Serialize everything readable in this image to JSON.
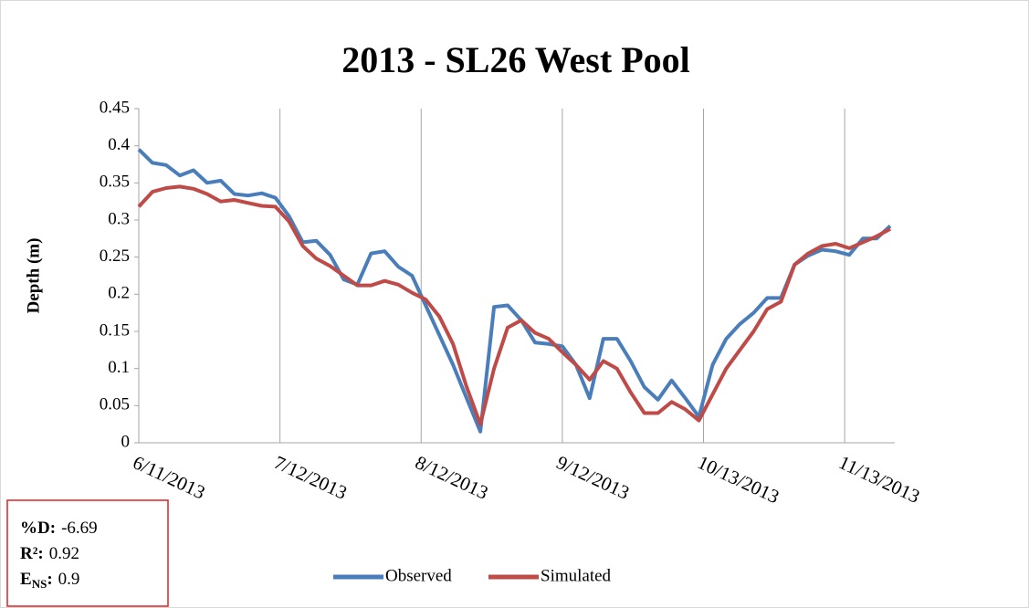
{
  "chart_data": {
    "type": "line",
    "title": "2013 - SL26 West Pool",
    "y_label": "Depth (m)",
    "x": [
      "2013-06-11",
      "2013-06-14",
      "2013-06-17",
      "2013-06-20",
      "2013-06-23",
      "2013-06-26",
      "2013-06-29",
      "2013-07-02",
      "2013-07-05",
      "2013-07-08",
      "2013-07-11",
      "2013-07-14",
      "2013-07-17",
      "2013-07-20",
      "2013-07-23",
      "2013-07-26",
      "2013-07-29",
      "2013-08-01",
      "2013-08-04",
      "2013-08-07",
      "2013-08-10",
      "2013-08-13",
      "2013-08-16",
      "2013-08-19",
      "2013-08-22",
      "2013-08-25",
      "2013-08-28",
      "2013-08-31",
      "2013-09-03",
      "2013-09-06",
      "2013-09-09",
      "2013-09-12",
      "2013-09-15",
      "2013-09-18",
      "2013-09-21",
      "2013-09-24",
      "2013-09-27",
      "2013-09-30",
      "2013-10-03",
      "2013-10-06",
      "2013-10-09",
      "2013-10-12",
      "2013-10-15",
      "2013-10-18",
      "2013-10-21",
      "2013-10-24",
      "2013-10-27",
      "2013-10-30",
      "2013-11-02",
      "2013-11-05",
      "2013-11-08",
      "2013-11-11",
      "2013-11-14",
      "2013-11-17",
      "2013-11-20",
      "2013-11-23"
    ],
    "series": [
      {
        "name": "Observed",
        "color": "#4a7ebb",
        "values": [
          0.395,
          0.377,
          0.374,
          0.36,
          0.367,
          0.35,
          0.353,
          0.335,
          0.333,
          0.336,
          0.33,
          0.305,
          0.27,
          0.272,
          0.253,
          0.22,
          0.213,
          0.255,
          0.258,
          0.237,
          0.225,
          0.185,
          0.145,
          0.105,
          0.06,
          0.015,
          0.183,
          0.185,
          0.165,
          0.135,
          0.133,
          0.13,
          0.105,
          0.06,
          0.14,
          0.14,
          0.11,
          0.075,
          0.058,
          0.084,
          0.06,
          0.035,
          0.105,
          0.14,
          0.16,
          0.175,
          0.195,
          0.195,
          0.24,
          0.252,
          0.26,
          0.258,
          0.253,
          0.275,
          0.275,
          0.292
        ]
      },
      {
        "name": "Simulated",
        "color": "#be4b48",
        "values": [
          0.318,
          0.338,
          0.343,
          0.345,
          0.342,
          0.335,
          0.325,
          0.327,
          0.323,
          0.319,
          0.318,
          0.298,
          0.265,
          0.248,
          0.238,
          0.225,
          0.212,
          0.212,
          0.218,
          0.213,
          0.202,
          0.193,
          0.17,
          0.133,
          0.075,
          0.025,
          0.1,
          0.155,
          0.165,
          0.148,
          0.14,
          0.122,
          0.105,
          0.085,
          0.11,
          0.1,
          0.068,
          0.04,
          0.04,
          0.055,
          0.045,
          0.03,
          0.065,
          0.1,
          0.125,
          0.15,
          0.18,
          0.19,
          0.24,
          0.255,
          0.265,
          0.268,
          0.262,
          0.27,
          0.278,
          0.288
        ]
      }
    ],
    "xlim": [
      "2013-06-11",
      "2013-11-24"
    ],
    "xticks": [
      {
        "value": "2013-06-11",
        "label": "6/11/2013"
      },
      {
        "value": "2013-07-12",
        "label": "7/12/2013"
      },
      {
        "value": "2013-08-12",
        "label": "8/12/2013"
      },
      {
        "value": "2013-09-12",
        "label": "9/12/2013"
      },
      {
        "value": "2013-10-13",
        "label": "10/13/2013"
      },
      {
        "value": "2013-11-13",
        "label": "11/13/2013"
      }
    ],
    "ylim": [
      0,
      0.45
    ],
    "yticks": [
      0,
      0.05,
      0.1,
      0.15,
      0.2,
      0.25,
      0.3,
      0.35,
      0.4,
      0.45
    ],
    "grid": "x",
    "legend": "bottom",
    "stats": [
      {
        "name": "%D:",
        "value": -6.69
      },
      {
        "name": "R²:",
        "value": 0.92
      },
      {
        "name": "E",
        "sub": "NS",
        "sep": ":",
        "value": 0.9
      }
    ]
  }
}
